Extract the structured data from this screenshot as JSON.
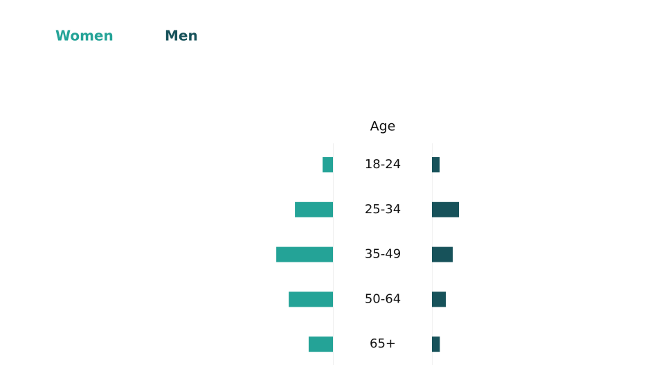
{
  "chart_data": {
    "type": "bar",
    "orientation": "mirrored",
    "category_label": "Age",
    "categories": [
      "18-24",
      "25-34",
      "35-49",
      "50-64",
      "65+"
    ],
    "series": [
      {
        "name": "Women",
        "color": "#24a397",
        "values": [
          5,
          18.3,
          27.3,
          21.3,
          11.7
        ]
      },
      {
        "name": "Men",
        "color": "#17525a",
        "values": [
          3.7,
          13,
          10,
          6.7,
          3.8
        ]
      }
    ]
  }
}
